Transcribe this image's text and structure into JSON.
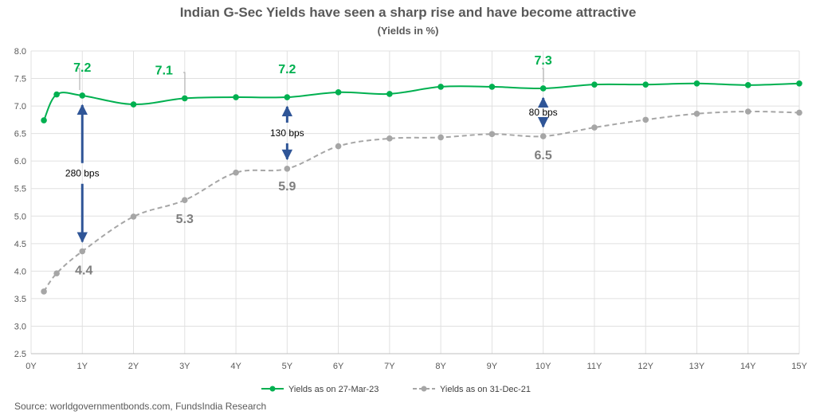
{
  "chart_data": {
    "type": "line",
    "title": "Indian G-Sec Yields have seen a sharp rise and have become attractive",
    "subtitle": "(Yields in %)",
    "x_ticks": [
      "0Y",
      "1Y",
      "2Y",
      "3Y",
      "4Y",
      "5Y",
      "6Y",
      "7Y",
      "8Y",
      "9Y",
      "10Y",
      "11Y",
      "12Y",
      "13Y",
      "14Y",
      "15Y"
    ],
    "y_ticks": [
      "2.5",
      "3.0",
      "3.5",
      "4.0",
      "4.5",
      "5.0",
      "5.5",
      "6.0",
      "6.5",
      "7.0",
      "7.5",
      "8.0"
    ],
    "ylim": [
      2.5,
      8.0
    ],
    "xlim": [
      0,
      15
    ],
    "grid": true,
    "legend_position": "bottom",
    "series": [
      {
        "name": "Yields as on 27-Mar-23",
        "color": "#00B050",
        "style": "solid",
        "x": [
          0.25,
          0.5,
          1,
          2,
          3,
          4,
          5,
          6,
          7,
          8,
          9,
          10,
          11,
          12,
          13,
          14,
          15
        ],
        "y": [
          6.74,
          7.21,
          7.19,
          7.03,
          7.14,
          7.16,
          7.16,
          7.25,
          7.22,
          7.35,
          7.35,
          7.32,
          7.39,
          7.39,
          7.41,
          7.38,
          7.41
        ]
      },
      {
        "name": "Yields as on 31-Dec-21",
        "color": "#A6A6A6",
        "style": "dashed",
        "x": [
          0.25,
          0.5,
          1,
          2,
          3,
          4,
          5,
          6,
          7,
          8,
          9,
          10,
          11,
          12,
          13,
          14,
          15
        ],
        "y": [
          3.63,
          3.96,
          4.36,
          4.99,
          5.29,
          5.79,
          5.86,
          6.27,
          6.41,
          6.43,
          6.49,
          6.45,
          6.61,
          6.75,
          6.86,
          6.9,
          6.88
        ]
      }
    ],
    "data_labels": [
      {
        "text": "7.2",
        "series": 0,
        "x": 1
      },
      {
        "text": "7.1",
        "series": 0,
        "x": 3
      },
      {
        "text": "7.2",
        "series": 0,
        "x": 5
      },
      {
        "text": "7.3",
        "series": 0,
        "x": 10
      },
      {
        "text": "4.4",
        "series": 1,
        "x": 1
      },
      {
        "text": "5.3",
        "series": 1,
        "x": 3
      },
      {
        "text": "5.9",
        "series": 1,
        "x": 5
      },
      {
        "text": "6.5",
        "series": 1,
        "x": 10
      }
    ],
    "spread_annotations": [
      {
        "text": "280 bps",
        "x": 1
      },
      {
        "text": "130 bps",
        "x": 5
      },
      {
        "text": "80 bps",
        "x": 10
      }
    ]
  },
  "source": "Source: worldgovernmentbonds.com, FundsIndia Research",
  "colors": {
    "arrow": "#2F5597",
    "axis_text": "#595959",
    "grid": "#E0E0E0"
  }
}
